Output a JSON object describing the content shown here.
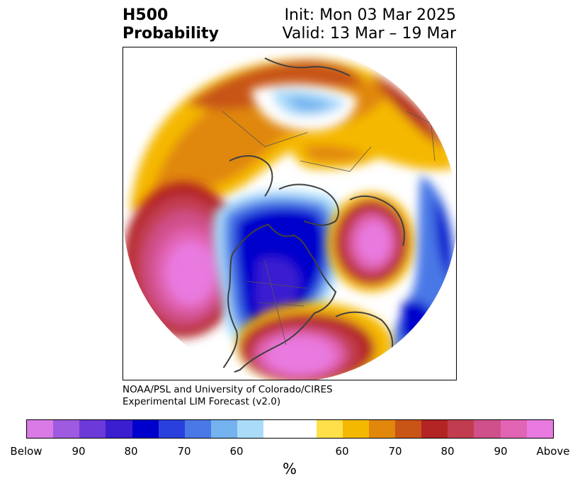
{
  "header": {
    "title_line1": "H500",
    "title_line2": "Probability",
    "init": "Init: Mon 03 Mar 2025",
    "valid": "Valid: 13 Mar – 19 Mar"
  },
  "credit": {
    "line1": "NOAA/PSL and University of Colorado/CIRES",
    "line2": "Experimental LIM Forecast (v2.0)"
  },
  "colorbar": {
    "colors": [
      "#d97ae6",
      "#9e5ae0",
      "#6b3ad8",
      "#3b1ed0",
      "#0000cc",
      "#2a40dc",
      "#4a78e6",
      "#74b2f0",
      "#aadcfa",
      "#ffffff",
      "#ffffff",
      "#ffe04a",
      "#f5b800",
      "#e0870c",
      "#c85416",
      "#b32424",
      "#c23c50",
      "#d0508a",
      "#e264b4",
      "#e87ae0"
    ],
    "labels": [
      "Below",
      "90",
      "80",
      "70",
      "60",
      "60",
      "70",
      "80",
      "90",
      "Above"
    ],
    "unit": "%"
  },
  "map": {
    "projection": "north polar stereographic",
    "domain": "Northern Hemisphere 500 hPa height probability",
    "features": [
      "coastlines",
      "country borders",
      "state/province borders"
    ]
  }
}
